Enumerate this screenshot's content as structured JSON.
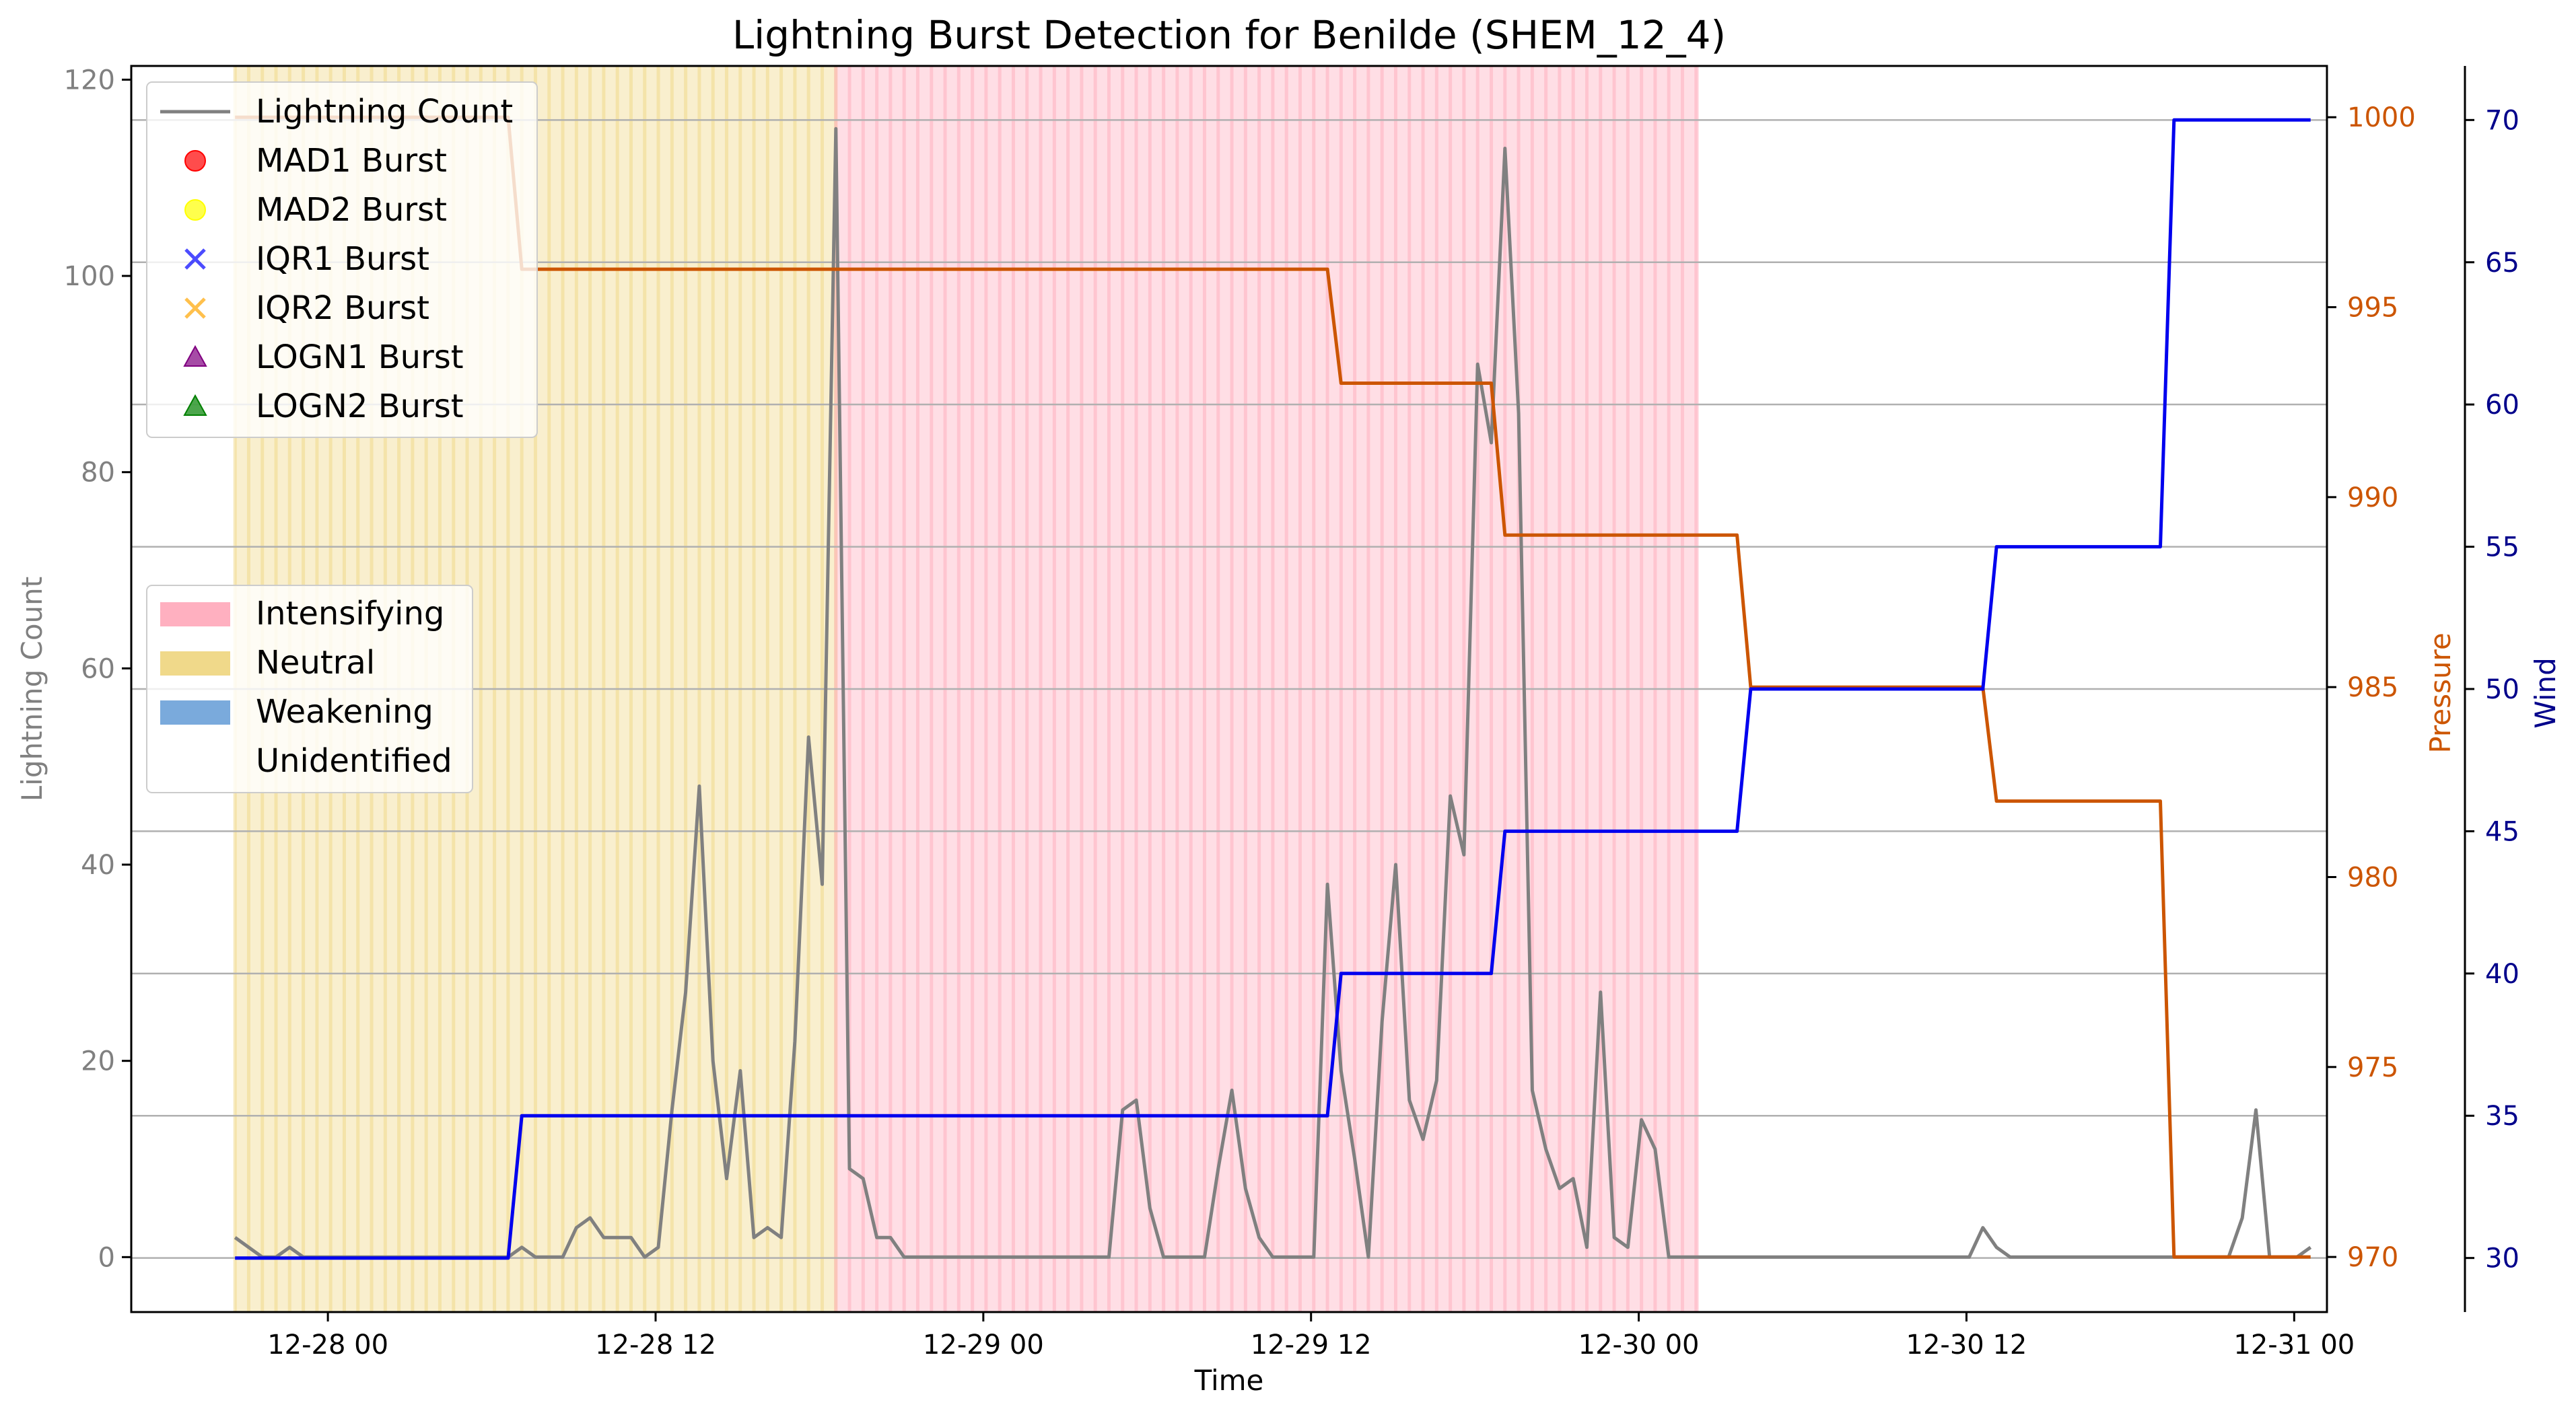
{
  "title": "Lightning Burst Detection for Benilde (SHEM_12_4)",
  "colors": {
    "lightning": "#808080",
    "pressure": "#cc5500",
    "wind": "#0000ee",
    "wind_axis": "#00008b",
    "intensifying": "#ffb0c0",
    "neutral": "#f0d98a",
    "weakening": "#7aaadc",
    "mad1": "#ff0000",
    "mad2": "#ffff00",
    "iqr1": "#0000ff",
    "iqr2": "#ffa500",
    "logn1": "#800080",
    "logn2": "#008000"
  },
  "legend_bursts": [
    {
      "label": "Lightning Count",
      "marker": "line",
      "color": "#808080"
    },
    {
      "label": "MAD1 Burst",
      "marker": "circle",
      "color": "#ff0000"
    },
    {
      "label": "MAD2 Burst",
      "marker": "circle",
      "color": "#ffff00"
    },
    {
      "label": "IQR1 Burst",
      "marker": "x",
      "color": "#0000ff"
    },
    {
      "label": "IQR2 Burst",
      "marker": "x",
      "color": "#ffa500"
    },
    {
      "label": "LOGN1 Burst",
      "marker": "triangle",
      "color": "#800080"
    },
    {
      "label": "LOGN2 Burst",
      "marker": "triangle",
      "color": "#008000"
    }
  ],
  "legend_phases": [
    {
      "label": "Intensifying",
      "color": "#ffb0c0"
    },
    {
      "label": "Neutral",
      "color": "#f0d98a"
    },
    {
      "label": "Weakening",
      "color": "#7aaadc"
    },
    {
      "label": "Unidentified",
      "color": "none"
    }
  ],
  "chart_data": {
    "type": "line",
    "title": "Lightning Burst Detection for Benilde (SHEM_12_4)",
    "xlabel": "Time",
    "x_unit": "hours since 12-27 00:00",
    "xlim": [
      16.8,
      97.2
    ],
    "x_ticks": [
      {
        "hour": 24,
        "label": "12-28 00"
      },
      {
        "hour": 36,
        "label": "12-28 12"
      },
      {
        "hour": 48,
        "label": "12-29 00"
      },
      {
        "hour": 60,
        "label": "12-29 12"
      },
      {
        "hour": 72,
        "label": "12-30 00"
      },
      {
        "hour": 84,
        "label": "12-30 12"
      },
      {
        "hour": 96,
        "label": "12-31 00"
      }
    ],
    "axes": {
      "left": {
        "label": "Lightning Count",
        "ylim": [
          -5.6,
          121.4
        ],
        "ticks": [
          0,
          20,
          40,
          60,
          80,
          100,
          120
        ]
      },
      "pressure": {
        "label": "Pressure",
        "ylim": [
          968.55,
          1001.35
        ],
        "ticks": [
          970,
          975,
          980,
          985,
          990,
          995,
          1000
        ]
      },
      "wind": {
        "label": "Wind",
        "ylim": [
          28.1,
          71.9
        ],
        "ticks": [
          30,
          35,
          40,
          45,
          50,
          55,
          60,
          65,
          70
        ]
      }
    },
    "phases": [
      {
        "phase": "Neutral",
        "start": 20.6,
        "end": 42.6
      },
      {
        "phase": "Intensifying",
        "start": 42.6,
        "end": 74.2
      }
    ],
    "series": [
      {
        "name": "Lightning Count",
        "axis": "left",
        "points": [
          [
            20.6,
            2
          ],
          [
            21.1,
            1
          ],
          [
            21.6,
            0
          ],
          [
            22.1,
            0
          ],
          [
            22.6,
            1
          ],
          [
            23.1,
            0
          ],
          [
            23.6,
            0
          ],
          [
            24.1,
            0
          ],
          [
            24.6,
            0
          ],
          [
            25.1,
            0
          ],
          [
            25.6,
            0
          ],
          [
            26.1,
            0
          ],
          [
            26.6,
            0
          ],
          [
            27.1,
            0
          ],
          [
            27.6,
            0
          ],
          [
            28.1,
            0
          ],
          [
            28.6,
            0
          ],
          [
            29.1,
            0
          ],
          [
            29.6,
            0
          ],
          [
            30.1,
            0
          ],
          [
            30.6,
            0
          ],
          [
            31.1,
            1
          ],
          [
            31.6,
            0
          ],
          [
            32.1,
            0
          ],
          [
            32.6,
            0
          ],
          [
            33.1,
            3
          ],
          [
            33.6,
            4
          ],
          [
            34.1,
            2
          ],
          [
            34.6,
            2
          ],
          [
            35.1,
            2
          ],
          [
            35.6,
            0
          ],
          [
            36.1,
            1
          ],
          [
            36.6,
            15
          ],
          [
            37.1,
            27
          ],
          [
            37.6,
            48
          ],
          [
            38.1,
            20
          ],
          [
            38.6,
            8
          ],
          [
            39.1,
            19
          ],
          [
            39.6,
            2
          ],
          [
            40.1,
            3
          ],
          [
            40.6,
            2
          ],
          [
            41.1,
            22
          ],
          [
            41.6,
            53
          ],
          [
            42.1,
            38
          ],
          [
            42.6,
            115
          ],
          [
            43.1,
            9
          ],
          [
            43.6,
            8
          ],
          [
            44.1,
            2
          ],
          [
            44.6,
            2
          ],
          [
            45.1,
            0
          ],
          [
            45.6,
            0
          ],
          [
            46.1,
            0
          ],
          [
            46.6,
            0
          ],
          [
            47.1,
            0
          ],
          [
            47.6,
            0
          ],
          [
            48.1,
            0
          ],
          [
            48.6,
            0
          ],
          [
            49.1,
            0
          ],
          [
            49.6,
            0
          ],
          [
            50.1,
            0
          ],
          [
            50.6,
            0
          ],
          [
            51.1,
            0
          ],
          [
            51.6,
            0
          ],
          [
            52.1,
            0
          ],
          [
            52.6,
            0
          ],
          [
            53.1,
            15
          ],
          [
            53.6,
            16
          ],
          [
            54.1,
            5
          ],
          [
            54.6,
            0
          ],
          [
            55.1,
            0
          ],
          [
            55.6,
            0
          ],
          [
            56.1,
            0
          ],
          [
            56.6,
            9
          ],
          [
            57.1,
            17
          ],
          [
            57.6,
            7
          ],
          [
            58.1,
            2
          ],
          [
            58.6,
            0
          ],
          [
            59.1,
            0
          ],
          [
            59.6,
            0
          ],
          [
            60.1,
            0
          ],
          [
            60.6,
            38
          ],
          [
            61.1,
            19
          ],
          [
            61.6,
            10
          ],
          [
            62.1,
            0
          ],
          [
            62.6,
            24
          ],
          [
            63.1,
            40
          ],
          [
            63.6,
            16
          ],
          [
            64.1,
            12
          ],
          [
            64.6,
            18
          ],
          [
            65.1,
            47
          ],
          [
            65.6,
            41
          ],
          [
            66.1,
            91
          ],
          [
            66.6,
            83
          ],
          [
            67.1,
            113
          ],
          [
            67.6,
            86
          ],
          [
            68.1,
            17
          ],
          [
            68.6,
            11
          ],
          [
            69.1,
            7
          ],
          [
            69.6,
            8
          ],
          [
            70.1,
            1
          ],
          [
            70.6,
            27
          ],
          [
            71.1,
            2
          ],
          [
            71.6,
            1
          ],
          [
            72.1,
            14
          ],
          [
            72.6,
            11
          ],
          [
            73.1,
            0
          ],
          [
            84.1,
            0
          ],
          [
            84.6,
            3
          ],
          [
            85.1,
            1
          ],
          [
            85.6,
            0
          ],
          [
            93.6,
            0
          ],
          [
            94.1,
            4
          ],
          [
            94.6,
            15
          ],
          [
            95.1,
            0
          ],
          [
            96.1,
            0
          ],
          [
            96.6,
            1
          ]
        ]
      },
      {
        "name": "Pressure",
        "axis": "pressure",
        "points": [
          [
            20.6,
            1000
          ],
          [
            30.6,
            1000
          ],
          [
            31.1,
            996
          ],
          [
            60.6,
            996
          ],
          [
            61.1,
            993
          ],
          [
            66.6,
            993
          ],
          [
            67.1,
            989
          ],
          [
            75.6,
            989
          ],
          [
            76.1,
            985
          ],
          [
            84.6,
            985
          ],
          [
            85.1,
            982
          ],
          [
            91.1,
            982
          ],
          [
            91.6,
            970
          ],
          [
            96.6,
            970
          ]
        ]
      },
      {
        "name": "Wind",
        "axis": "wind",
        "points": [
          [
            20.6,
            30
          ],
          [
            30.6,
            30
          ],
          [
            31.1,
            35
          ],
          [
            60.6,
            35
          ],
          [
            61.1,
            40
          ],
          [
            66.6,
            40
          ],
          [
            67.1,
            45
          ],
          [
            75.6,
            45
          ],
          [
            76.1,
            50
          ],
          [
            84.6,
            50
          ],
          [
            85.1,
            55
          ],
          [
            91.1,
            55
          ],
          [
            91.6,
            70
          ],
          [
            96.6,
            70
          ]
        ]
      }
    ],
    "bursts": [],
    "grid": "horizontal gridlines at wind axis ticks"
  }
}
